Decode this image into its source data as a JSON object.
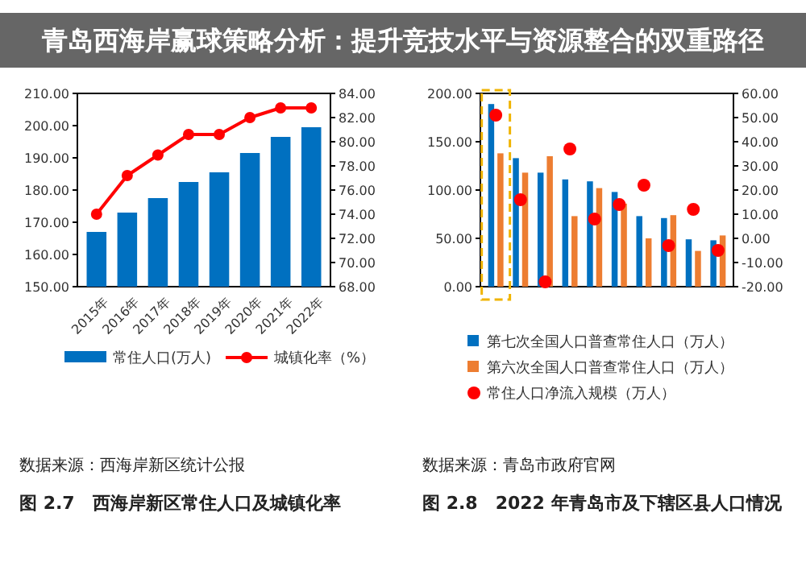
{
  "chart_data": [
    {
      "type": "bar",
      "categories": [
        "2015年",
        "2016年",
        "2017年",
        "2018年",
        "2019年",
        "2020年",
        "2021年",
        "2022年"
      ],
      "series": [
        {
          "name": "常住人口(万人)",
          "type": "bar",
          "color": "#0070c0",
          "values": [
            167,
            173,
            177.5,
            182.5,
            185.5,
            191.5,
            196.5,
            199.5
          ]
        },
        {
          "name": "城镇化率（%）",
          "type": "line",
          "axis": "y2",
          "color": "#ff0000",
          "values": [
            74.0,
            77.2,
            78.9,
            80.6,
            80.6,
            82.0,
            82.8,
            82.8
          ]
        }
      ],
      "ylim": [
        150,
        210
      ],
      "yticks": [
        {
          "value": 150,
          "label": "150.00"
        },
        {
          "value": 160,
          "label": "160.00"
        },
        {
          "value": 170,
          "label": "170.00"
        },
        {
          "value": 180,
          "label": "180.00"
        },
        {
          "value": 190,
          "label": "190.00"
        },
        {
          "value": 200,
          "label": "200.00"
        },
        {
          "value": 210,
          "label": "210.00"
        }
      ],
      "y2lim": [
        68,
        84
      ],
      "y2ticks": [
        {
          "value": 68,
          "label": "68.00"
        },
        {
          "value": 70,
          "label": "70.00"
        },
        {
          "value": 72,
          "label": "72.00"
        },
        {
          "value": 74,
          "label": "74.00"
        },
        {
          "value": 76,
          "label": "76.00"
        },
        {
          "value": 78,
          "label": "78.00"
        },
        {
          "value": 80,
          "label": "80.00"
        },
        {
          "value": 82,
          "label": "82.00"
        },
        {
          "value": 84,
          "label": "84.00"
        }
      ],
      "marker": "circle",
      "legend": "bottom",
      "annotations": [
        "数据来源：西海岸新区统计公报",
        "图 2.7　西海岸新区常住人口及城镇化率"
      ]
    },
    {
      "type": "bar",
      "categories": [
        null,
        null,
        null,
        null,
        null,
        null,
        null,
        null,
        null,
        null
      ],
      "series": [
        {
          "name": "第七次全国人口普查常住人口（万人）",
          "type": "bar",
          "color": "#0070c0",
          "values": [
            189,
            133,
            118,
            111,
            109,
            98,
            73,
            71,
            49,
            48
          ]
        },
        {
          "name": "第六次全国人口普查常住人口（万人）",
          "type": "bar",
          "color": "#ed7d31",
          "values": [
            138,
            118,
            135,
            73,
            102,
            86,
            50,
            74,
            37,
            53
          ]
        },
        {
          "name": "常住人口净流入规模（万人）",
          "type": "scatter",
          "axis": "y2",
          "color": "#ff0000",
          "values": [
            51,
            16,
            -18,
            37,
            8,
            14,
            22,
            -3,
            12,
            -5
          ]
        }
      ],
      "ylim": [
        0,
        200
      ],
      "yticks": [
        {
          "value": 0,
          "label": "0.00"
        },
        {
          "value": 50,
          "label": "50.00"
        },
        {
          "value": 100,
          "label": "100.00"
        },
        {
          "value": 150,
          "label": "150.00"
        },
        {
          "value": 200,
          "label": "200.00"
        }
      ],
      "y2lim": [
        -20,
        60
      ],
      "y2ticks": [
        {
          "value": -20,
          "label": "-20.00"
        },
        {
          "value": -10,
          "label": "-10.00"
        },
        {
          "value": 0,
          "label": "0.00"
        },
        {
          "value": 10,
          "label": "10.00"
        },
        {
          "value": 20,
          "label": "20.00"
        },
        {
          "value": 30,
          "label": "30.00"
        },
        {
          "value": 40,
          "label": "40.00"
        },
        {
          "value": 50,
          "label": "50.00"
        },
        {
          "value": 60,
          "label": "60.00"
        }
      ],
      "marker": "circle",
      "legend": "bottom",
      "tick_labels": "y",
      "annotations": [
        "数据来源：青岛市政府官网",
        "图 2.8　2022 年青岛市及下辖区县人口情况"
      ]
    },
    {
      "type": "other",
      "title": "青岛西海岸赢球策略分析：提升竞技水平与资源整合的双重路径"
    }
  ]
}
